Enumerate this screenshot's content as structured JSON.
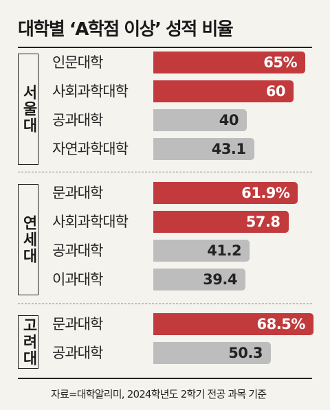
{
  "title": "대학별 ‘A학점 이상’ 성적 비율",
  "source": "자료=대학알리미, 2024학년도 2학기 전공 과목 기준",
  "colors": {
    "highlight": "#c23a3c",
    "normal": "#bdbdbd",
    "highlight_text": "#ffffff",
    "normal_text": "#222222"
  },
  "chart_data": {
    "type": "bar",
    "orientation": "horizontal",
    "title": "대학별 ‘A학점 이상’ 성적 비율",
    "xlim": [
      0,
      70
    ],
    "groups": [
      {
        "name": "서울대",
        "items": [
          {
            "category": "인문대학",
            "value": 65,
            "label": "65%",
            "highlight": true
          },
          {
            "category": "사회과학대학",
            "value": 60,
            "label": "60",
            "highlight": true
          },
          {
            "category": "공과대학",
            "value": 40,
            "label": "40",
            "highlight": false
          },
          {
            "category": "자연과학대학",
            "value": 43.1,
            "label": "43.1",
            "highlight": false
          }
        ]
      },
      {
        "name": "연세대",
        "items": [
          {
            "category": "문과대학",
            "value": 61.9,
            "label": "61.9%",
            "highlight": true
          },
          {
            "category": "사회과학대학",
            "value": 57.8,
            "label": "57.8",
            "highlight": true
          },
          {
            "category": "공과대학",
            "value": 41.2,
            "label": "41.2",
            "highlight": false
          },
          {
            "category": "이과대학",
            "value": 39.4,
            "label": "39.4",
            "highlight": false
          }
        ]
      },
      {
        "name": "고려대",
        "items": [
          {
            "category": "문과대학",
            "value": 68.5,
            "label": "68.5%",
            "highlight": true
          },
          {
            "category": "공과대학",
            "value": 50.3,
            "label": "50.3",
            "highlight": false
          }
        ]
      }
    ]
  }
}
